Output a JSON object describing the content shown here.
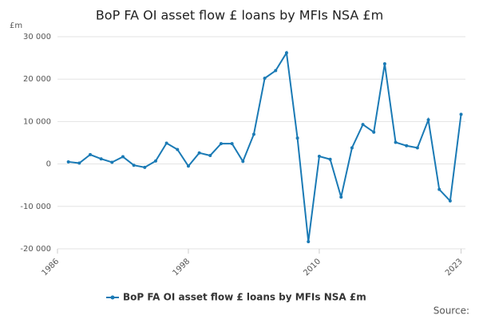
{
  "chart_data": {
    "type": "line",
    "title": "BoP FA OI asset flow £ loans by MFIs NSA £m",
    "y_unit": "£m",
    "source": "Source:",
    "x": [
      1987,
      1988,
      1989,
      1990,
      1991,
      1992,
      1993,
      1994,
      1995,
      1996,
      1997,
      1998,
      1999,
      2000,
      2001,
      2002,
      2003,
      2004,
      2005,
      2006,
      2007,
      2008,
      2009,
      2010,
      2011,
      2012,
      2013,
      2014,
      2015,
      2016,
      2017,
      2018,
      2019,
      2020,
      2021,
      2022,
      2023
    ],
    "series": [
      {
        "name": "BoP FA OI asset flow £ loans by MFIs NSA £m",
        "color": "#1a7ab5",
        "values": [
          500,
          200,
          2200,
          1200,
          400,
          1700,
          -300,
          -800,
          700,
          4900,
          3400,
          -500,
          2600,
          2000,
          4800,
          4800,
          600,
          7000,
          20200,
          22000,
          26200,
          6100,
          -18300,
          1800,
          1100,
          -7800,
          3800,
          9300,
          7500,
          23600,
          5100,
          4300,
          3800,
          10400,
          -6000,
          -8700,
          11700
        ]
      }
    ],
    "xlim": [
      1986,
      2023.4
    ],
    "xticks": [
      1986,
      1998,
      2010,
      2023
    ],
    "ylim": [
      -20000,
      30000
    ],
    "yticks": [
      {
        "value": -20000,
        "label": "-20 000"
      },
      {
        "value": -10000,
        "label": "-10 000"
      },
      0,
      {
        "value": 10000,
        "label": "10 000"
      },
      {
        "value": 20000,
        "label": "20 000"
      },
      {
        "value": 30000,
        "label": "30 000"
      }
    ],
    "grid": true
  }
}
